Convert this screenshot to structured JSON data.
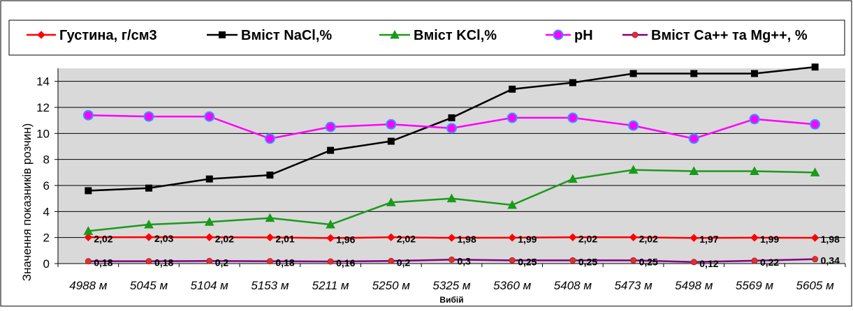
{
  "chart_data": {
    "type": "line",
    "title": "",
    "xlabel": "Вибій",
    "ylabel": "Значення показників розчин)",
    "ylim": [
      0,
      15
    ],
    "yticks": [
      0,
      2,
      4,
      6,
      8,
      10,
      12,
      14
    ],
    "grid": true,
    "legend_placement": "top",
    "categories": [
      "4988 м",
      "5045 м",
      "5104 м",
      "5153 м",
      "5211 м",
      "5250 м",
      "5325 м",
      "5360 м",
      "5408 м",
      "5473 м",
      "5498 м",
      "5569 м",
      "5605 м"
    ],
    "series": [
      {
        "name": "Густина, г/см3",
        "color": "#ff0000",
        "marker": "diamond",
        "values": [
          2.02,
          2.03,
          2.02,
          2.01,
          1.96,
          2.02,
          1.98,
          1.99,
          2.02,
          2.02,
          1.97,
          1.99,
          1.98
        ],
        "data_labels": [
          "2,02",
          "2,03",
          "2,02",
          "2,01",
          "1,96",
          "2,02",
          "1,98",
          "1,99",
          "2,02",
          "2,02",
          "1,97",
          "1,99",
          "1,98"
        ]
      },
      {
        "name": "Вміст NaCl,%",
        "color": "#000000",
        "marker": "square",
        "values": [
          5.6,
          5.8,
          6.5,
          6.8,
          8.7,
          9.4,
          11.2,
          13.4,
          13.9,
          14.6,
          14.6,
          14.6,
          15.1
        ]
      },
      {
        "name": "Вміст KCl,%",
        "color": "#1a9a1a",
        "marker": "triangle",
        "values": [
          2.5,
          3.0,
          3.2,
          3.5,
          3.0,
          4.7,
          5.0,
          4.5,
          6.5,
          7.2,
          7.1,
          7.1,
          7.0
        ]
      },
      {
        "name": "pH",
        "color": "#ff00ff",
        "marker": "circle-blue-edge",
        "values": [
          11.4,
          11.3,
          11.3,
          9.6,
          10.5,
          10.7,
          10.4,
          11.2,
          11.2,
          10.6,
          9.6,
          11.1,
          10.7
        ]
      },
      {
        "name": "Вміст Са++ та Mg++, %",
        "color": "#800080",
        "marker": "circle-red",
        "values": [
          0.18,
          0.18,
          0.2,
          0.18,
          0.16,
          0.2,
          0.3,
          0.25,
          0.25,
          0.25,
          0.12,
          0.22,
          0.34
        ],
        "data_labels": [
          "0,18",
          "0,18",
          "0,2",
          "0,18",
          "0,16",
          "0,2",
          "0,3",
          "0,25",
          "0,25",
          "0,25",
          "0,12",
          "0,22",
          "0,34"
        ]
      }
    ]
  }
}
